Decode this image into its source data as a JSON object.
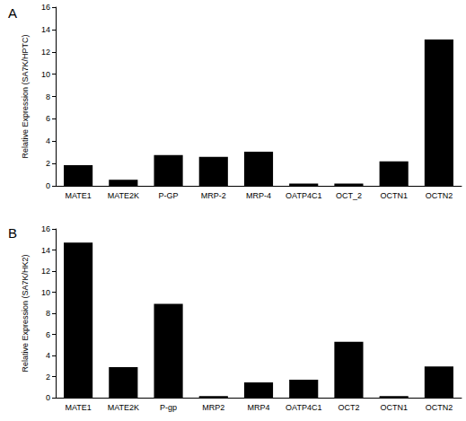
{
  "chart_data": [
    {
      "type": "bar",
      "title": "A",
      "y_label": "Relative Expression (SA7K/HPTC)",
      "categories": [
        "MATE1",
        "MATE2K",
        "P-GP",
        "MRP-2",
        "MRP-4",
        "OATP4C1",
        "OCT_2",
        "OCTN1",
        "OCTN2"
      ],
      "values": [
        1.85,
        0.55,
        2.75,
        2.6,
        3.05,
        0.2,
        0.2,
        2.2,
        13.1
      ],
      "color": "#000000",
      "ylim": [
        0,
        16
      ],
      "yticks": [
        0,
        2,
        4,
        6,
        8,
        10,
        12,
        14,
        16
      ],
      "grid": false
    },
    {
      "type": "bar",
      "title": "B",
      "y_label": "Relative Expression (SA7K/HK2)",
      "categories": [
        "MATE1",
        "MATE2K",
        "P-gp",
        "MRP2",
        "MRP4",
        "OATP4C1",
        "OCT2",
        "OCTN1",
        "OCTN2"
      ],
      "values": [
        14.7,
        2.9,
        8.9,
        0.15,
        1.45,
        1.7,
        5.3,
        0.15,
        2.95
      ],
      "color": "#000000",
      "ylim": [
        0,
        16
      ],
      "yticks": [
        0,
        2,
        4,
        6,
        8,
        10,
        12,
        14,
        16
      ],
      "grid": false
    }
  ]
}
